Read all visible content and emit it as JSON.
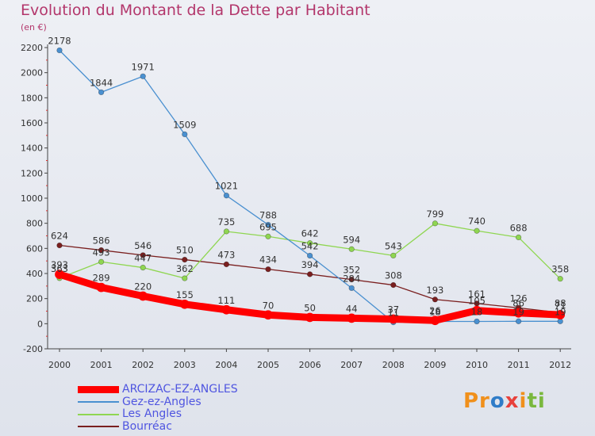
{
  "title": "Evolution du Montant de la Dette par Habitant",
  "unit": "(en €)",
  "brand": "Proxiti",
  "chart_data": {
    "type": "line",
    "title": "Evolution du Montant de la Dette par Habitant",
    "ylabel": "(en €)",
    "xlabel": "",
    "x": [
      2000,
      2001,
      2002,
      2003,
      2004,
      2005,
      2006,
      2007,
      2008,
      2009,
      2010,
      2011,
      2012
    ],
    "x_tick_labels": [
      "2000",
      "2001",
      "2002",
      "2003",
      "2004",
      "2005",
      "2006",
      "2007",
      "2008",
      "2009",
      "2010",
      "2011",
      "2012"
    ],
    "ylim": [
      -200,
      2200
    ],
    "y_ticks": [
      -200,
      0,
      200,
      400,
      600,
      800,
      1000,
      1200,
      1400,
      1600,
      1800,
      2000,
      2200
    ],
    "y_tick_labels": [
      "-200",
      "0",
      "200",
      "400",
      "600",
      "800",
      "1000",
      "1200",
      "1400",
      "1600",
      "1800",
      "2000",
      "2200"
    ],
    "grid": false,
    "legend_position": "bottom-left",
    "series": [
      {
        "name": "ARCIZAC-EZ-ANGLES",
        "color": "#ff0000",
        "values": [
          393,
          289,
          220,
          155,
          111,
          70,
          50,
          44,
          37,
          26,
          105,
          86,
          71
        ],
        "labels": [
          "393",
          "289",
          "220",
          "155",
          "111",
          "70",
          "50",
          "44",
          "37",
          "26",
          "105",
          "86",
          "71"
        ]
      },
      {
        "name": "Gez-ez-Angles",
        "color": "#4a90d0",
        "values": [
          2178,
          1844,
          1971,
          1509,
          1021,
          788,
          542,
          284,
          11,
          18,
          18,
          19,
          19
        ],
        "labels": [
          "2178",
          "1844",
          "1971",
          "1509",
          "1021",
          "788",
          "542",
          "284",
          "11",
          "18",
          "18",
          "19",
          "19"
        ]
      },
      {
        "name": "Les Angles",
        "color": "#8fd651",
        "values": [
          363,
          493,
          447,
          362,
          735,
          695,
          642,
          594,
          543,
          799,
          740,
          688,
          358
        ],
        "labels": [
          "363",
          "493",
          "447",
          "362",
          "735",
          "695",
          "642",
          "594",
          "543",
          "799",
          "740",
          "688",
          "358"
        ]
      },
      {
        "name": "Bourréac",
        "color": "#7a1f1f",
        "values": [
          624,
          586,
          546,
          510,
          473,
          434,
          394,
          352,
          308,
          193,
          161,
          126,
          88
        ],
        "labels": [
          "624",
          "586",
          "546",
          "510",
          "473",
          "434",
          "394",
          "352",
          "308",
          "193",
          "161",
          "126",
          "88"
        ]
      }
    ]
  }
}
